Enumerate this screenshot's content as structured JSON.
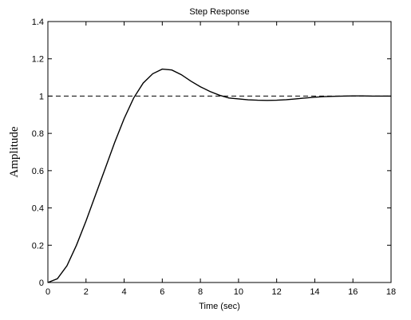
{
  "chart_data": {
    "type": "line",
    "title": "Step Response",
    "xlabel": "Time (sec)",
    "ylabel": "Amplitude",
    "xlim": [
      0,
      18
    ],
    "ylim": [
      0,
      1.4
    ],
    "xticks": [
      0,
      2,
      4,
      6,
      8,
      10,
      12,
      14,
      16,
      18
    ],
    "yticks": [
      0,
      0.2,
      0.4,
      0.6,
      0.8,
      1,
      1.2,
      1.4
    ],
    "xtick_labels": [
      "0",
      "2",
      "4",
      "6",
      "8",
      "10",
      "12",
      "14",
      "16",
      "18"
    ],
    "ytick_labels": [
      "0",
      "0.2",
      "0.4",
      "0.6",
      "0.8",
      "1",
      "1.2",
      "1.4"
    ],
    "grid": false,
    "reference_line": {
      "y": 1,
      "style": "dashed"
    },
    "series": [
      {
        "x": [
          0,
          0.5,
          1,
          1.5,
          2,
          2.5,
          3,
          3.5,
          4,
          4.5,
          5,
          5.5,
          6,
          6.5,
          7,
          7.5,
          8,
          8.5,
          9,
          9.5,
          10,
          10.5,
          11,
          11.5,
          12,
          12.5,
          13,
          13.5,
          14,
          14.5,
          15,
          15.5,
          16,
          16.5,
          17,
          17.5,
          18
        ],
        "y": [
          0,
          0.02,
          0.09,
          0.2,
          0.33,
          0.47,
          0.61,
          0.75,
          0.88,
          0.99,
          1.07,
          1.12,
          1.145,
          1.14,
          1.115,
          1.08,
          1.05,
          1.025,
          1.005,
          0.99,
          0.985,
          0.98,
          0.978,
          0.977,
          0.978,
          0.981,
          0.985,
          0.99,
          0.994,
          0.997,
          0.999,
          1.0,
          1.001,
          1.001,
          1.0,
          1.0,
          1.0
        ]
      }
    ]
  }
}
